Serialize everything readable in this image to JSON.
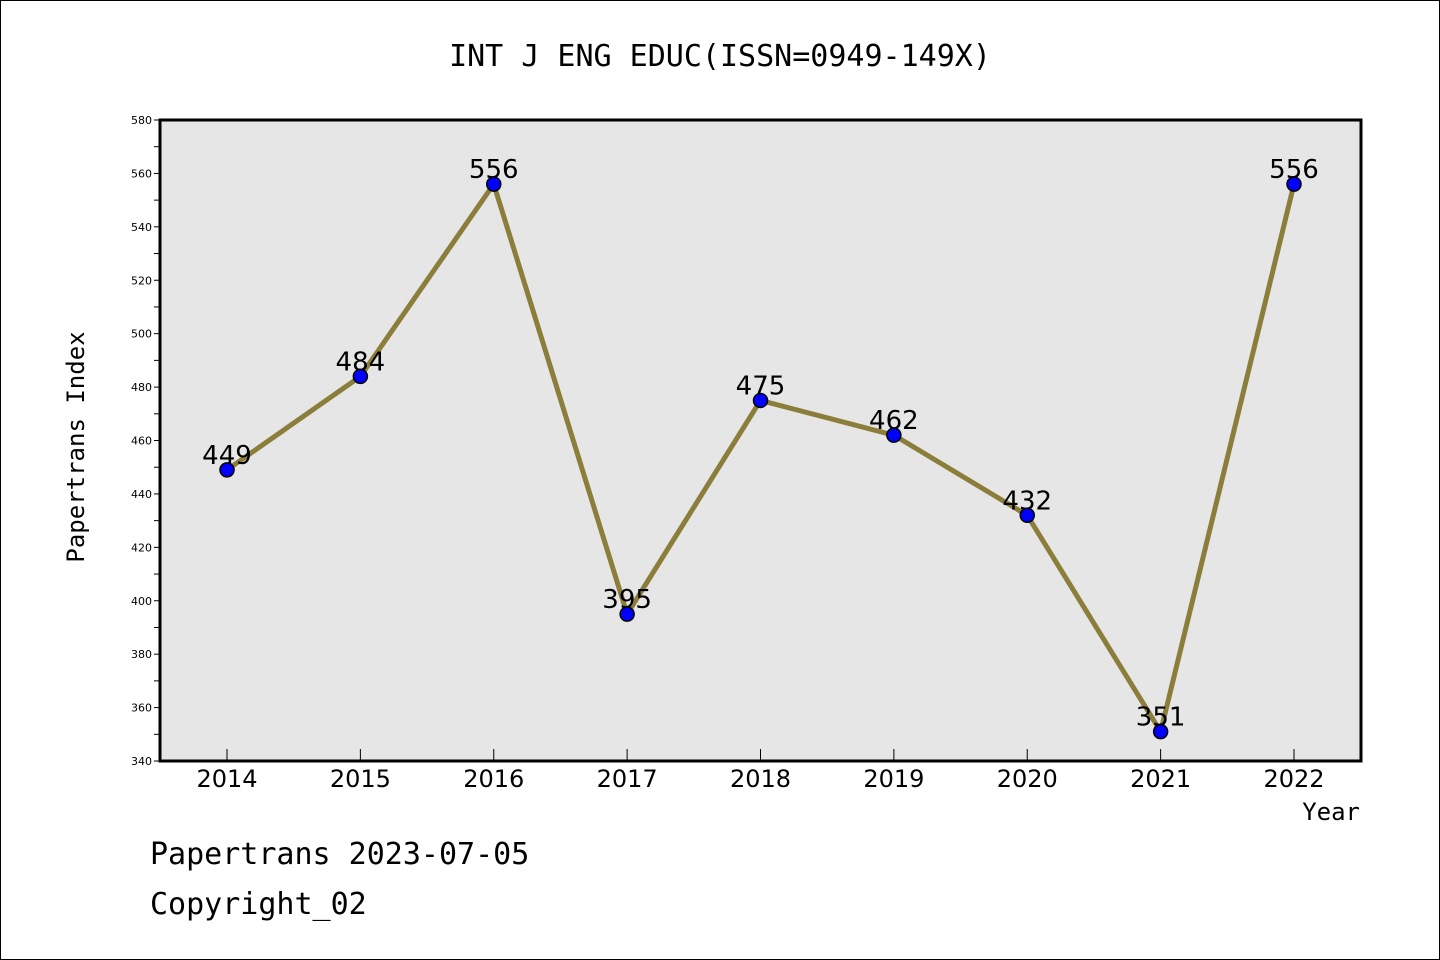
{
  "chart_data": {
    "type": "line",
    "title": "INT J ENG EDUC(ISSN=0949-149X)",
    "xlabel": "Year",
    "ylabel": "Papertrans Index",
    "categories": [
      "2014",
      "2015",
      "2016",
      "2017",
      "2018",
      "2019",
      "2020",
      "2021",
      "2022"
    ],
    "values": [
      449,
      484,
      556,
      395,
      475,
      462,
      432,
      351,
      556
    ],
    "data_labels": [
      "449",
      "484",
      "556",
      "395",
      "475",
      "462",
      "432",
      "351",
      "556"
    ],
    "ylim": [
      340,
      580
    ],
    "yticks": [
      340,
      360,
      380,
      400,
      420,
      440,
      460,
      480,
      500,
      520,
      540,
      560,
      580
    ],
    "ytick_labels": [
      "340",
      "360",
      "380",
      "400",
      "420",
      "440",
      "460",
      "480",
      "500",
      "520",
      "540",
      "560",
      "580"
    ],
    "grid": false,
    "legend": "none",
    "colors": {
      "line": "#8B7D3A",
      "marker": "#0000FF",
      "plot_background": "#E6E6E6",
      "axis": "#000000"
    }
  },
  "footer": {
    "line1": "Papertrans 2023-07-05",
    "line2": "Copyright_02"
  }
}
